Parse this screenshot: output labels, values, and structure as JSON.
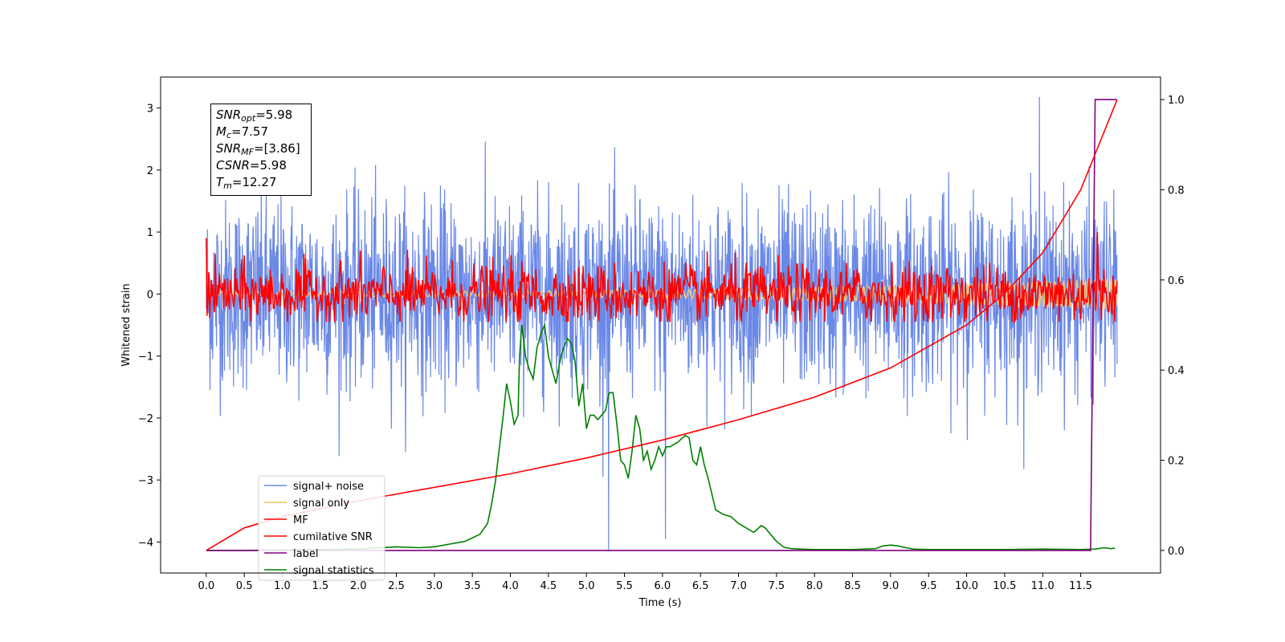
{
  "chart_data": {
    "type": "line",
    "xlabel": "Time (s)",
    "ylabel": "Whitened strain",
    "xlim": [
      -0.6,
      12.55
    ],
    "ylim": [
      -4.5,
      3.5
    ],
    "y2lim": [
      -0.05,
      1.05
    ],
    "x_ticks": [
      "0.0",
      "0.5",
      "1.0",
      "1.5",
      "2.0",
      "2.5",
      "3.0",
      "3.5",
      "4.0",
      "4.5",
      "5.0",
      "5.5",
      "6.0",
      "6.5",
      "7.0",
      "7.5",
      "8.0",
      "8.5",
      "9.0",
      "9.5",
      "10.0",
      "10.5",
      "11.0",
      "11.5"
    ],
    "y_ticks": [
      "3",
      "2",
      "1",
      "0",
      "−1",
      "−2",
      "−3",
      "−4"
    ],
    "y2_ticks": [
      "1.0",
      "0.8",
      "0.6",
      "0.4",
      "0.2",
      "0.0"
    ],
    "legend_position": "lower-left",
    "grid": false,
    "annotation": {
      "snr_opt": {
        "symbol": "SNR",
        "sub": "opt",
        "value": "=5.98"
      },
      "mc": {
        "symbol": "M",
        "sub": "c",
        "value": "=7.57"
      },
      "snr_mf": {
        "symbol": "SNR",
        "sub": "MF",
        "value": "=[3.86]"
      },
      "csnr": {
        "symbol": "CSNR",
        "sub": "",
        "value": "=5.98"
      },
      "tm": {
        "symbol": "T",
        "sub": "m",
        "value": "=12.27"
      }
    },
    "series": [
      {
        "name": "signal+ noise",
        "color": "#6a88e6",
        "axis": "left",
        "x_range": [
          0.0,
          11.98
        ],
        "y_range": [
          -4.15,
          3.18
        ],
        "description": "noisy whitened strain, approx. std 0.75"
      },
      {
        "name": "signal only",
        "color": "#f5c97a",
        "axis": "left",
        "x_range": [
          0.0,
          11.98
        ],
        "y_range": [
          -0.25,
          0.25
        ],
        "description": "chirp growing in amplitude toward the end"
      },
      {
        "name": "MF",
        "color": "#ff0000",
        "axis": "left",
        "x_range": [
          0.0,
          11.98
        ],
        "y_range": [
          -0.45,
          1.0
        ]
      },
      {
        "name": "cumilative SNR",
        "color": "#ff0000",
        "axis": "right",
        "x": [
          0.0,
          0.5,
          1.0,
          2.0,
          3.0,
          4.0,
          5.0,
          6.0,
          7.0,
          8.0,
          9.0,
          10.0,
          10.5,
          11.0,
          11.5,
          11.98
        ],
        "values": [
          0.0,
          0.05,
          0.075,
          0.11,
          0.14,
          0.17,
          0.205,
          0.245,
          0.29,
          0.34,
          0.405,
          0.5,
          0.57,
          0.66,
          0.8,
          1.0
        ]
      },
      {
        "name": "label",
        "color": "#800080",
        "axis": "right",
        "x": [
          0.0,
          11.63,
          11.69,
          11.97
        ],
        "values": [
          0.0,
          0.0,
          1.0,
          1.0
        ]
      },
      {
        "name": "signal statistics",
        "color": "#008000",
        "axis": "right",
        "x": [
          0.0,
          0.5,
          1.0,
          1.5,
          2.0,
          2.5,
          2.8,
          3.0,
          3.2,
          3.4,
          3.6,
          3.7,
          3.75,
          3.8,
          3.85,
          3.9,
          3.95,
          4.0,
          4.05,
          4.1,
          4.12,
          4.15,
          4.2,
          4.25,
          4.3,
          4.35,
          4.4,
          4.45,
          4.5,
          4.55,
          4.6,
          4.65,
          4.7,
          4.75,
          4.8,
          4.85,
          4.9,
          4.95,
          5.0,
          5.05,
          5.1,
          5.15,
          5.2,
          5.25,
          5.3,
          5.35,
          5.4,
          5.45,
          5.5,
          5.55,
          5.6,
          5.65,
          5.7,
          5.75,
          5.8,
          5.85,
          5.9,
          5.95,
          6.0,
          6.05,
          6.1,
          6.2,
          6.3,
          6.35,
          6.4,
          6.45,
          6.5,
          6.55,
          6.6,
          6.7,
          6.8,
          6.9,
          7.0,
          7.1,
          7.2,
          7.3,
          7.35,
          7.4,
          7.5,
          7.6,
          7.7,
          7.8,
          8.0,
          8.5,
          8.8,
          8.9,
          9.0,
          9.1,
          9.2,
          9.3,
          9.5,
          10.0,
          10.5,
          11.0,
          11.5,
          11.7,
          11.8,
          11.9,
          11.95
        ],
        "values": [
          0.0,
          0.0,
          0.001,
          0.002,
          0.003,
          0.008,
          0.006,
          0.008,
          0.014,
          0.02,
          0.036,
          0.06,
          0.1,
          0.15,
          0.22,
          0.29,
          0.37,
          0.33,
          0.28,
          0.3,
          0.43,
          0.5,
          0.43,
          0.4,
          0.38,
          0.45,
          0.48,
          0.5,
          0.43,
          0.4,
          0.37,
          0.42,
          0.45,
          0.47,
          0.46,
          0.42,
          0.32,
          0.37,
          0.27,
          0.3,
          0.3,
          0.29,
          0.3,
          0.31,
          0.35,
          0.35,
          0.28,
          0.2,
          0.19,
          0.16,
          0.22,
          0.3,
          0.27,
          0.2,
          0.22,
          0.18,
          0.2,
          0.23,
          0.21,
          0.23,
          0.23,
          0.24,
          0.255,
          0.25,
          0.2,
          0.19,
          0.23,
          0.19,
          0.16,
          0.09,
          0.08,
          0.075,
          0.06,
          0.05,
          0.04,
          0.055,
          0.05,
          0.04,
          0.02,
          0.007,
          0.004,
          0.003,
          0.002,
          0.002,
          0.004,
          0.01,
          0.012,
          0.01,
          0.006,
          0.003,
          0.002,
          0.002,
          0.002,
          0.003,
          0.002,
          0.003,
          0.006,
          0.004,
          0.005
        ]
      }
    ]
  }
}
